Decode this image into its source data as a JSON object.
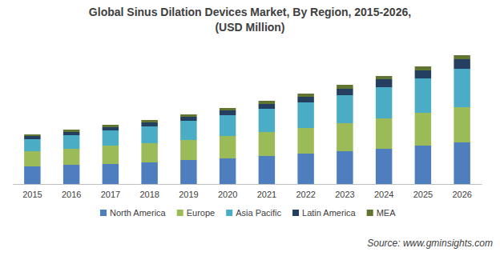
{
  "chart_data": {
    "type": "bar",
    "stacked": true,
    "title": "Global Sinus Dilation Devices Market, By Region, 2015-2026,",
    "subtitle": "(USD Million)",
    "annotations": [
      "Source: www.gminsights.com"
    ],
    "categories": [
      "2015",
      "2016",
      "2017",
      "2018",
      "2019",
      "2020",
      "2021",
      "2022",
      "2023",
      "2024",
      "2025",
      "2026"
    ],
    "series": [
      {
        "name": "North America",
        "color": "#4e7ebd",
        "values": [
          220,
          240,
          250,
          270,
          300,
          320,
          350,
          380,
          410,
          440,
          480,
          520
        ]
      },
      {
        "name": "Europe",
        "color": "#9bbb59",
        "values": [
          190,
          200,
          230,
          240,
          250,
          280,
          300,
          320,
          350,
          380,
          410,
          440
        ]
      },
      {
        "name": "Asia Pacific",
        "color": "#4bacc6",
        "values": [
          150,
          170,
          190,
          210,
          240,
          260,
          290,
          320,
          350,
          390,
          430,
          480
        ]
      },
      {
        "name": "Latin America",
        "color": "#243f60",
        "values": [
          40,
          40,
          40,
          50,
          50,
          60,
          60,
          70,
          80,
          100,
          100,
          120
        ]
      },
      {
        "name": "MEA",
        "color": "#5f7530",
        "values": [
          20,
          30,
          30,
          30,
          30,
          30,
          40,
          40,
          50,
          40,
          50,
          50
        ]
      }
    ],
    "ylim": [
      0,
      1700
    ],
    "tick_labels": "x",
    "grid": false,
    "legend": "bottom"
  }
}
